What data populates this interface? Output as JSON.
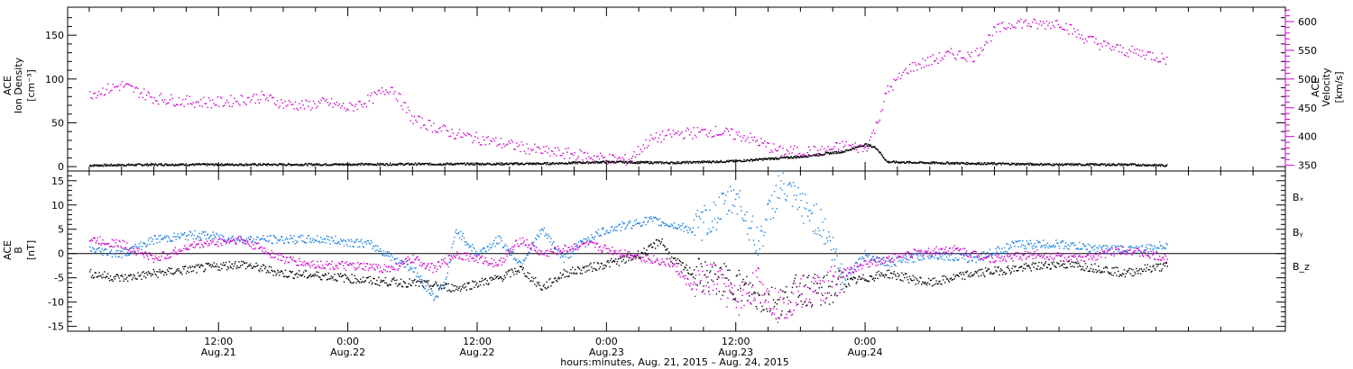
{
  "chart_data": [
    {
      "type": "scatter",
      "panel": "top",
      "ylabel": {
        "left": [
          "ACE",
          "Ion Density",
          "[cm⁻³]"
        ],
        "right": [
          "ACE",
          "Velocity",
          "[km/s]"
        ]
      },
      "ylim_left": [
        -5,
        182
      ],
      "yticks_left": [
        0,
        50,
        100,
        150
      ],
      "ylim_right": [
        340,
        625
      ],
      "yticks_right": [
        350,
        400,
        450,
        500,
        550,
        600
      ],
      "colors": {
        "density": "#000000",
        "velocity": "#cc00cc"
      },
      "series": [
        {
          "axis": "left",
          "color": "#000000",
          "points": [
            [
              -6,
              2
            ],
            [
              0,
              3
            ],
            [
              12,
              3
            ],
            [
              24,
              3.5
            ],
            [
              36,
              4
            ],
            [
              42,
              6
            ],
            [
              48,
              5
            ],
            [
              54,
              7
            ],
            [
              60,
              12
            ],
            [
              64,
              18
            ],
            [
              66,
              26
            ],
            [
              67,
              22
            ],
            [
              68,
              6
            ],
            [
              72,
              5
            ],
            [
              78,
              4
            ],
            [
              84,
              3
            ],
            [
              90,
              3
            ],
            [
              94,
              2
            ]
          ]
        },
        {
          "axis": "right",
          "color": "#cc00cc",
          "points": [
            [
              -6,
              475
            ],
            [
              -3,
              490
            ],
            [
              0,
              468
            ],
            [
              3,
              462
            ],
            [
              6,
              460
            ],
            [
              8,
              465
            ],
            [
              10,
              470
            ],
            [
              12,
              458
            ],
            [
              14,
              455
            ],
            [
              16,
              460
            ],
            [
              18,
              450
            ],
            [
              20,
              465
            ],
            [
              22,
              488
            ],
            [
              24,
              430
            ],
            [
              28,
              405
            ],
            [
              32,
              390
            ],
            [
              36,
              375
            ],
            [
              40,
              368
            ],
            [
              42,
              362
            ],
            [
              44,
              360
            ],
            [
              46,
              395
            ],
            [
              48,
              405
            ],
            [
              52,
              410
            ],
            [
              55,
              400
            ],
            [
              58,
              375
            ],
            [
              62,
              375
            ],
            [
              64,
              385
            ],
            [
              66,
              380
            ],
            [
              67,
              420
            ],
            [
              68,
              480
            ],
            [
              70,
              520
            ],
            [
              74,
              545
            ],
            [
              76,
              540
            ],
            [
              78,
              585
            ],
            [
              80,
              600
            ],
            [
              82,
              595
            ],
            [
              84,
              600
            ],
            [
              86,
              575
            ],
            [
              88,
              560
            ],
            [
              90,
              550
            ],
            [
              92,
              545
            ],
            [
              94,
              535
            ]
          ]
        }
      ]
    },
    {
      "type": "scatter",
      "panel": "bottom",
      "ylabel": [
        "ACE",
        "B",
        "[nT]"
      ],
      "ylim": [
        -16,
        17
      ],
      "yticks": [
        -15,
        -10,
        -5,
        0,
        5,
        10,
        15
      ],
      "zero_line": true,
      "legend": [
        "Bₓ",
        "Bᵧ",
        "B_z"
      ],
      "colors": {
        "bx": "#000000",
        "by": "#1a7fe0",
        "bz": "#cc00cc"
      },
      "series": [
        {
          "color": "#000000",
          "points": [
            [
              -6,
              -4
            ],
            [
              -3,
              -5
            ],
            [
              0,
              -4
            ],
            [
              4,
              -3
            ],
            [
              8,
              -2
            ],
            [
              10,
              -3
            ],
            [
              12,
              -4
            ],
            [
              16,
              -4.5
            ],
            [
              20,
              -5.5
            ],
            [
              24,
              -6
            ],
            [
              26,
              -6.5
            ],
            [
              28,
              -7
            ],
            [
              30,
              -6
            ],
            [
              32,
              -5
            ],
            [
              34,
              -3
            ],
            [
              36,
              -7
            ],
            [
              38,
              -4
            ],
            [
              40,
              -3
            ],
            [
              42,
              -2
            ],
            [
              44,
              -1
            ],
            [
              46,
              1
            ],
            [
              47,
              3
            ],
            [
              48,
              -1
            ],
            [
              50,
              -4
            ],
            [
              52,
              -5
            ],
            [
              54,
              -6
            ],
            [
              56,
              -9
            ],
            [
              58,
              -10
            ],
            [
              60,
              -7
            ],
            [
              62,
              -8
            ],
            [
              64,
              -6
            ],
            [
              66,
              -5
            ],
            [
              68,
              -4
            ],
            [
              72,
              -6
            ],
            [
              76,
              -4
            ],
            [
              80,
              -3
            ],
            [
              84,
              -2
            ],
            [
              88,
              -3
            ],
            [
              90,
              -4
            ],
            [
              92,
              -3
            ],
            [
              94,
              -2.5
            ]
          ]
        },
        {
          "color": "#1a7fe0",
          "points": [
            [
              -6,
              1
            ],
            [
              -3,
              0
            ],
            [
              0,
              3
            ],
            [
              4,
              4
            ],
            [
              8,
              3
            ],
            [
              12,
              3
            ],
            [
              16,
              3
            ],
            [
              20,
              2
            ],
            [
              24,
              -3
            ],
            [
              26,
              -9
            ],
            [
              27,
              -6
            ],
            [
              28,
              5
            ],
            [
              30,
              0
            ],
            [
              32,
              3
            ],
            [
              34,
              -2
            ],
            [
              36,
              5
            ],
            [
              38,
              -1
            ],
            [
              40,
              3
            ],
            [
              42,
              5
            ],
            [
              44,
              6
            ],
            [
              46,
              7
            ],
            [
              48,
              6
            ],
            [
              50,
              5
            ],
            [
              52,
              8
            ],
            [
              54,
              12
            ],
            [
              56,
              2
            ],
            [
              58,
              14
            ],
            [
              60,
              10
            ],
            [
              62,
              6
            ],
            [
              64,
              -5
            ],
            [
              66,
              0
            ],
            [
              68,
              -2
            ],
            [
              72,
              0
            ],
            [
              76,
              -1
            ],
            [
              80,
              2
            ],
            [
              84,
              2
            ],
            [
              88,
              1
            ],
            [
              92,
              1
            ],
            [
              94,
              2
            ]
          ]
        },
        {
          "color": "#cc00cc",
          "points": [
            [
              -6,
              3
            ],
            [
              -3,
              2
            ],
            [
              0,
              -1
            ],
            [
              4,
              2
            ],
            [
              8,
              3
            ],
            [
              12,
              -1
            ],
            [
              14,
              -2
            ],
            [
              18,
              -2.5
            ],
            [
              22,
              -3
            ],
            [
              24,
              -1
            ],
            [
              26,
              -3
            ],
            [
              28,
              0
            ],
            [
              30,
              -1
            ],
            [
              32,
              -2
            ],
            [
              34,
              3
            ],
            [
              36,
              0
            ],
            [
              40,
              2
            ],
            [
              44,
              0
            ],
            [
              48,
              -2
            ],
            [
              50,
              -7
            ],
            [
              52,
              -5
            ],
            [
              54,
              -10
            ],
            [
              56,
              -6
            ],
            [
              58,
              -11
            ],
            [
              60,
              -8
            ],
            [
              62,
              -7
            ],
            [
              64,
              -4
            ],
            [
              66,
              -2
            ],
            [
              70,
              0
            ],
            [
              74,
              1
            ],
            [
              78,
              -1
            ],
            [
              82,
              0
            ],
            [
              86,
              -1
            ],
            [
              90,
              1
            ],
            [
              94,
              -1
            ]
          ]
        }
      ]
    }
  ],
  "x_axis": {
    "xlim": [
      -8,
      105
    ],
    "ticks": [
      {
        "hours": 6,
        "label": "12:00",
        "date": "Aug.21"
      },
      {
        "hours": 18,
        "label": "0:00",
        "date": "Aug.22"
      },
      {
        "hours": 30,
        "label": "12:00",
        "date": "Aug.22"
      },
      {
        "hours": 42,
        "label": "0:00",
        "date": "Aug.23"
      },
      {
        "hours": 54,
        "label": "12:00",
        "date": "Aug.23"
      },
      {
        "hours": 66,
        "label": "0:00",
        "date": "Aug.24"
      }
    ],
    "label": "hours:minutes, Aug. 21, 2015 – Aug. 24, 2015"
  }
}
